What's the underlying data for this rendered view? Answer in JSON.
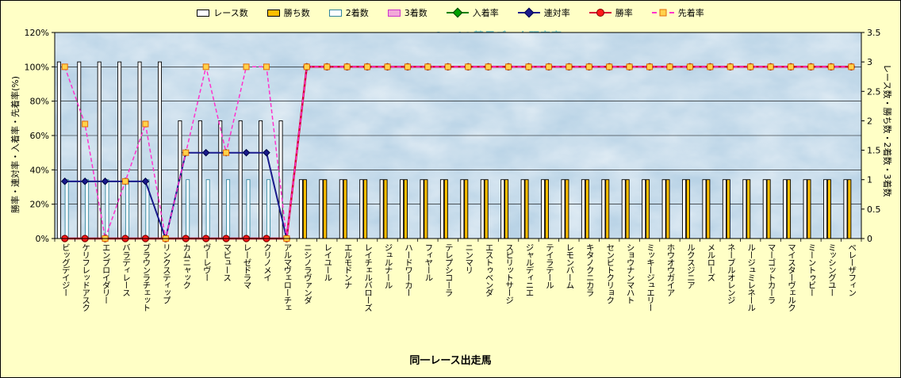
{
  "watermark": "©Caniの競馬データ研究室",
  "colors": {
    "background": "#ffffc6",
    "plot_background": "#b9d3e6",
    "watermark": "#4fb9c9",
    "grid": "#000000"
  },
  "legend": {
    "items": [
      {
        "label": "レース数",
        "swatch": "bar",
        "fill": "#ffffff",
        "stroke": "#000000"
      },
      {
        "label": "勝ち数",
        "swatch": "bar",
        "fill": "#ffbf00",
        "stroke": "#000000"
      },
      {
        "label": "2着数",
        "swatch": "bar",
        "fill": "#fdfeff",
        "stroke": "#31859c"
      },
      {
        "label": "3着数",
        "swatch": "bar",
        "fill": "#f2a7d8",
        "stroke": "#cc33cc"
      },
      {
        "label": "入着率",
        "swatch": "line",
        "color": "#008000",
        "dashed": false,
        "marker": "diamond",
        "marker_fill": "#00a000",
        "marker_stroke": "#004000"
      },
      {
        "label": "連対率",
        "swatch": "line",
        "color": "#1a1a8c",
        "dashed": false,
        "marker": "diamond",
        "marker_fill": "#1a1a8c",
        "marker_stroke": "#00004c"
      },
      {
        "label": "勝率",
        "swatch": "line",
        "color": "#d60036",
        "dashed": false,
        "marker": "circle",
        "marker_fill": "#ff1a1a",
        "marker_stroke": "#7f0000"
      },
      {
        "label": "先着率",
        "swatch": "line",
        "color": "#ff33cc",
        "dashed": true,
        "marker": "square",
        "marker_fill": "#ffd24a",
        "marker_stroke": "#e36c09"
      }
    ]
  },
  "chart_data": {
    "type": "bar+line",
    "x_title": "同一レース出走馬",
    "categories": [
      "ビッグデイジー",
      "ケリフレッドアスク",
      "エンブロイダリー",
      "バラディレース",
      "ブラウンラチェット",
      "リンクスティップ",
      "カムニャック",
      "ヴーレヴー",
      "マピュース",
      "レーゼドラマ",
      "クリノメイ",
      "アルマヴェローチェ",
      "ニシノラヴァンダ",
      "レイユール",
      "エルモドンナ",
      "レイチェルバローズ",
      "ジュルナール",
      "ハードワーカー",
      "フィヤール",
      "テレプシコーラ",
      "ニンマリ",
      "エストゥベンダ",
      "スピリットサージ",
      "ジャルディニエ",
      "テイラテール",
      "レモンバーム",
      "キタノクニカラ",
      "センビトクリョク",
      "ショウナンマハト",
      "ミッキージュエリー",
      "ホウオウガイア",
      "ルクスジニア",
      "メルローズ",
      "ネーブルオレンジ",
      "ルージュミレネール",
      "マーゴットカーラ",
      "マイスターヴェルク",
      "ミーントゥビー",
      "ミッシングユー",
      "ベレーザフィン"
    ],
    "left_axis": {
      "title": "勝率・連対率・入着率・先着率(%)",
      "max": 120,
      "ticks": [
        "0%",
        "20%",
        "40%",
        "60%",
        "80%",
        "100%",
        "120%"
      ]
    },
    "right_axis": {
      "title": "レース数・勝ち数・2着数・3着数",
      "max": 3.5,
      "ticks": [
        "0",
        "0.5",
        "1",
        "1.5",
        "2",
        "2.5",
        "3",
        "3.5"
      ]
    },
    "bar_series": [
      {
        "name": "レース数",
        "fill": "#ffffff",
        "stroke": "#000000",
        "values": [
          3,
          3,
          3,
          3,
          3,
          3,
          2,
          2,
          2,
          2,
          2,
          2,
          1,
          1,
          1,
          1,
          1,
          1,
          1,
          1,
          1,
          1,
          1,
          1,
          1,
          1,
          1,
          1,
          1,
          1,
          1,
          1,
          1,
          1,
          1,
          1,
          1,
          1,
          1,
          1
        ]
      },
      {
        "name": "勝ち数",
        "fill": "#ffbf00",
        "stroke": "#000000",
        "values": [
          0,
          0,
          0,
          0,
          0,
          0,
          0,
          0,
          0,
          0,
          0,
          0,
          1,
          1,
          1,
          1,
          1,
          1,
          1,
          1,
          1,
          1,
          1,
          1,
          1,
          1,
          1,
          1,
          1,
          1,
          1,
          1,
          1,
          1,
          1,
          1,
          1,
          1,
          1,
          1
        ]
      },
      {
        "name": "2着数",
        "fill": "#fdfeff",
        "stroke": "#31859c",
        "values": [
          1,
          1,
          1,
          1,
          1,
          0,
          1,
          1,
          1,
          1,
          1,
          0,
          0,
          0,
          0,
          0,
          0,
          0,
          0,
          0,
          0,
          0,
          0,
          0,
          0,
          0,
          0,
          0,
          0,
          0,
          0,
          0,
          0,
          0,
          0,
          0,
          0,
          0,
          0,
          0
        ]
      },
      {
        "name": "3着数",
        "fill": "#f2a7d8",
        "stroke": "#cc33cc",
        "values": [
          0,
          0,
          0,
          0,
          0,
          0,
          0,
          0,
          0,
          0,
          0,
          0,
          0,
          0,
          0,
          0,
          0,
          0,
          0,
          0,
          0,
          0,
          0,
          0,
          0,
          0,
          0,
          0,
          0,
          0,
          0,
          0,
          0,
          0,
          0,
          0,
          0,
          0,
          0,
          0
        ]
      }
    ],
    "line_series": [
      {
        "name": "入着率",
        "color": "#008000",
        "width": 1.5,
        "dashed": false,
        "marker": "diamond",
        "marker_fill": "#00a000",
        "marker_stroke": "#004000",
        "values": [
          33.3,
          33.3,
          33.3,
          33.3,
          33.3,
          0,
          50,
          50,
          50,
          50,
          50,
          0,
          100,
          100,
          100,
          100,
          100,
          100,
          100,
          100,
          100,
          100,
          100,
          100,
          100,
          100,
          100,
          100,
          100,
          100,
          100,
          100,
          100,
          100,
          100,
          100,
          100,
          100,
          100,
          100
        ]
      },
      {
        "name": "連対率",
        "color": "#1a1a8c",
        "width": 2,
        "dashed": false,
        "marker": "diamond",
        "marker_fill": "#1a1a8c",
        "marker_stroke": "#00004c",
        "values": [
          33.3,
          33.3,
          33.3,
          33.3,
          33.3,
          0,
          50,
          50,
          50,
          50,
          50,
          0,
          100,
          100,
          100,
          100,
          100,
          100,
          100,
          100,
          100,
          100,
          100,
          100,
          100,
          100,
          100,
          100,
          100,
          100,
          100,
          100,
          100,
          100,
          100,
          100,
          100,
          100,
          100,
          100
        ]
      },
      {
        "name": "勝率",
        "color": "#d60036",
        "width": 2.5,
        "dashed": false,
        "marker": "circle",
        "marker_fill": "#ff1a1a",
        "marker_stroke": "#7f0000",
        "values": [
          0,
          0,
          0,
          0,
          0,
          0,
          0,
          0,
          0,
          0,
          0,
          0,
          100,
          100,
          100,
          100,
          100,
          100,
          100,
          100,
          100,
          100,
          100,
          100,
          100,
          100,
          100,
          100,
          100,
          100,
          100,
          100,
          100,
          100,
          100,
          100,
          100,
          100,
          100,
          100
        ]
      },
      {
        "name": "先着率",
        "color": "#ff33cc",
        "width": 1.5,
        "dashed": true,
        "marker": "square",
        "marker_fill": "#ffd24a",
        "marker_stroke": "#e36c09",
        "values": [
          100,
          66.7,
          0,
          33.3,
          66.7,
          0,
          50,
          100,
          50,
          100,
          100,
          0,
          100,
          100,
          100,
          100,
          100,
          100,
          100,
          100,
          100,
          100,
          100,
          100,
          100,
          100,
          100,
          100,
          100,
          100,
          100,
          100,
          100,
          100,
          100,
          100,
          100,
          100,
          100,
          100
        ]
      }
    ]
  }
}
